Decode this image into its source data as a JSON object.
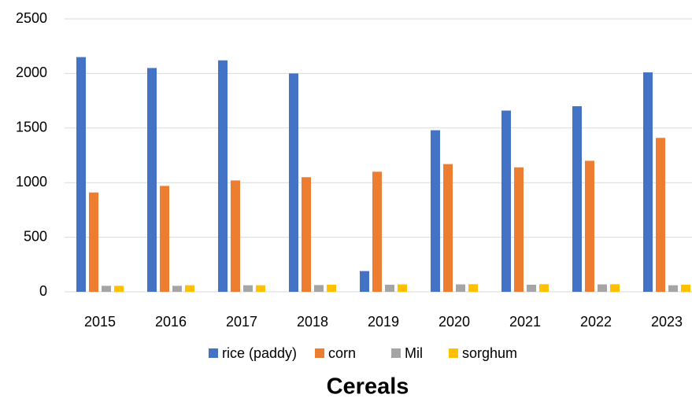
{
  "chart_data": {
    "type": "bar",
    "title": "Cereals",
    "categories": [
      "2015",
      "2016",
      "2017",
      "2018",
      "2019",
      "2020",
      "2021",
      "2022",
      "2023"
    ],
    "series": [
      {
        "name": "rice (paddy)",
        "color": "#4472c4",
        "values": [
          2150,
          2050,
          2120,
          2000,
          190,
          1480,
          1660,
          1700,
          2010
        ]
      },
      {
        "name": "corn",
        "color": "#ed7d31",
        "values": [
          910,
          970,
          1020,
          1050,
          1100,
          1170,
          1140,
          1200,
          1410
        ]
      },
      {
        "name": "Mil",
        "color": "#a5a5a5",
        "values": [
          55,
          55,
          60,
          62,
          65,
          68,
          65,
          68,
          60
        ]
      },
      {
        "name": "sorghum",
        "color": "#ffc000",
        "values": [
          55,
          60,
          60,
          65,
          68,
          70,
          70,
          70,
          65
        ]
      }
    ],
    "ylim": [
      0,
      2500
    ],
    "yticks": [
      0,
      500,
      1000,
      1500,
      2000,
      2500
    ],
    "grid": true,
    "legend": "bottom"
  }
}
